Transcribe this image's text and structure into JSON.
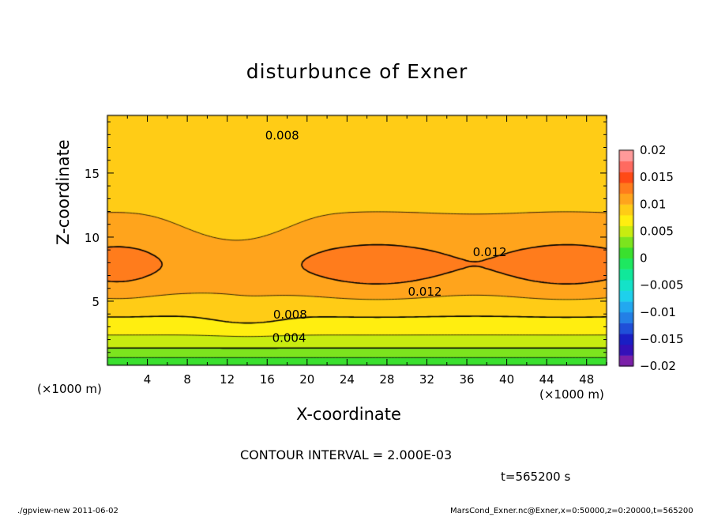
{
  "chart_data": {
    "type": "contour",
    "title": "disturbunce of Exner",
    "xlabel": "X-coordinate",
    "ylabel": "Z-coordinate",
    "x_unit": "(×1000 m)",
    "x_range": [
      0,
      50
    ],
    "y_range": [
      0,
      19.5
    ],
    "x_ticks": [
      4,
      8,
      12,
      16,
      20,
      24,
      28,
      32,
      36,
      40,
      44,
      48
    ],
    "y_ticks": [
      5,
      10,
      15
    ],
    "contour_interval": "CONTOUR INTERVAL = 2.000E-03",
    "time": "t=565200 s",
    "contour_labels": [
      {
        "text": "0.008",
        "x": 17.5,
        "z": 18.0
      },
      {
        "text": "0.012",
        "x": 38.3,
        "z": 8.9
      },
      {
        "text": "0.012",
        "x": 31.8,
        "z": 5.8
      },
      {
        "text": "0.008",
        "x": 18.3,
        "z": 4.0
      },
      {
        "text": "0.004",
        "x": 18.2,
        "z": 2.2
      }
    ],
    "colorbar": {
      "ticks": [
        "0.02",
        "0.015",
        "0.01",
        "0.005",
        "0",
        "−0.005",
        "−0.01",
        "−0.015",
        "−0.02"
      ],
      "bins": [
        {
          "lo": -0.02,
          "hi": -0.018,
          "color": "#7a1fa8"
        },
        {
          "lo": -0.018,
          "hi": -0.016,
          "color": "#3410b8"
        },
        {
          "lo": -0.016,
          "hi": -0.014,
          "color": "#1a1ec4"
        },
        {
          "lo": -0.014,
          "hi": -0.012,
          "color": "#1f4fd8"
        },
        {
          "lo": -0.012,
          "hi": -0.01,
          "color": "#237fe6"
        },
        {
          "lo": -0.01,
          "hi": -0.008,
          "color": "#22a8f0"
        },
        {
          "lo": -0.008,
          "hi": -0.006,
          "color": "#1ed0ec"
        },
        {
          "lo": -0.006,
          "hi": -0.004,
          "color": "#14e2c8"
        },
        {
          "lo": -0.004,
          "hi": -0.002,
          "color": "#10e89a"
        },
        {
          "lo": -0.002,
          "hi": 0.0,
          "color": "#1ee860"
        },
        {
          "lo": 0.0,
          "hi": 0.002,
          "color": "#3ae02e"
        },
        {
          "lo": 0.002,
          "hi": 0.004,
          "color": "#7ce41e"
        },
        {
          "lo": 0.004,
          "hi": 0.006,
          "color": "#c8ec10"
        },
        {
          "lo": 0.006,
          "hi": 0.008,
          "color": "#ffee10"
        },
        {
          "lo": 0.008,
          "hi": 0.01,
          "color": "#ffcc16"
        },
        {
          "lo": 0.01,
          "hi": 0.012,
          "color": "#ffa41c"
        },
        {
          "lo": 0.012,
          "hi": 0.014,
          "color": "#ff7c1c"
        },
        {
          "lo": 0.014,
          "hi": 0.016,
          "color": "#ff4a16"
        },
        {
          "lo": 0.016,
          "hi": 0.018,
          "color": "#ff6a60"
        },
        {
          "lo": 0.018,
          "hi": 0.02,
          "color": "#ff9a9a"
        }
      ]
    }
  },
  "footer": {
    "left": "./gpview-new   2011-06-02",
    "right": "MarsCond_Exner.nc@Exner,x=0:50000,z=0:20000,t=565200"
  }
}
